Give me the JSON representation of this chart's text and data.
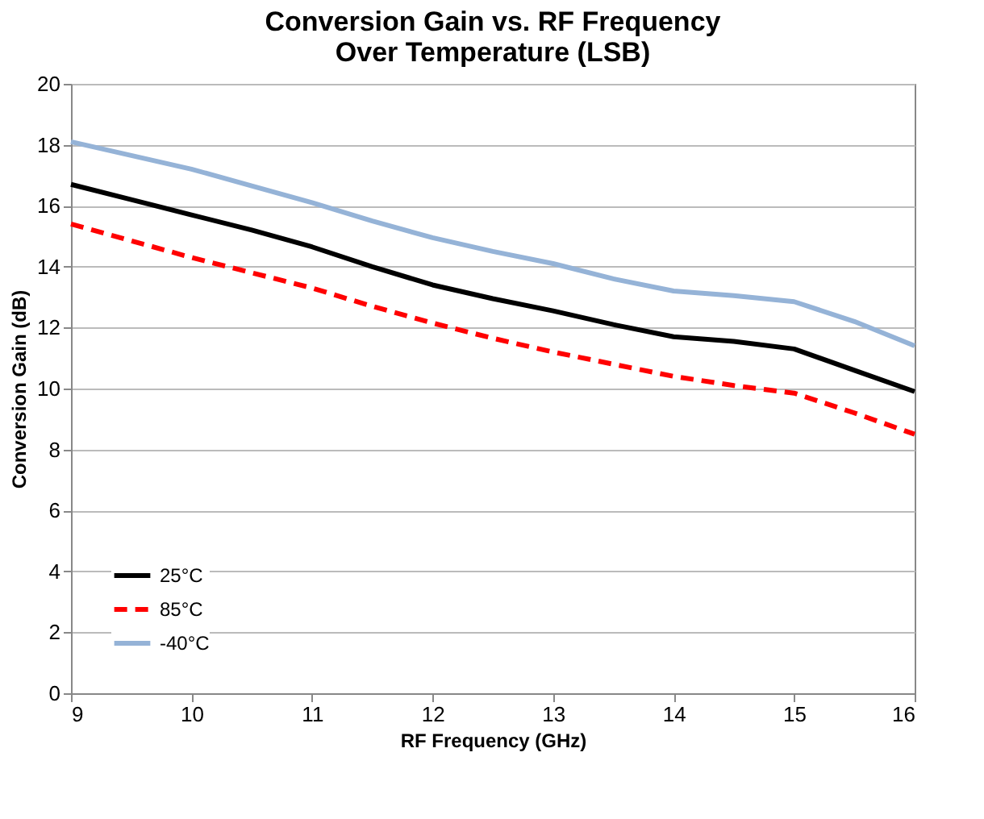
{
  "chart_data": {
    "type": "line",
    "title": "Conversion Gain vs. RF Frequency\nOver Temperature  (LSB)",
    "xlabel": "RF Frequency (GHz)",
    "ylabel": "Conversion Gain (dB)",
    "x": [
      9,
      9.5,
      10,
      10.5,
      11,
      11.5,
      12,
      12.5,
      13,
      13.5,
      14,
      14.5,
      15,
      15.5,
      16
    ],
    "series": [
      {
        "name": "25°C",
        "color": "#000000",
        "line_style": "solid",
        "values": [
          16.7,
          16.2,
          15.7,
          15.2,
          14.65,
          14.0,
          13.4,
          12.95,
          12.55,
          12.1,
          11.7,
          11.55,
          11.3,
          10.6,
          9.9
        ]
      },
      {
        "name": "85°C",
        "color": "#ff0000",
        "line_style": "dashed",
        "values": [
          15.4,
          14.85,
          14.3,
          13.8,
          13.3,
          12.7,
          12.15,
          11.65,
          11.2,
          10.8,
          10.4,
          10.1,
          9.85,
          9.2,
          8.5
        ]
      },
      {
        "name": "-40°C",
        "color": "#95b3d7",
        "line_style": "solid",
        "values": [
          18.1,
          17.65,
          17.2,
          16.65,
          16.1,
          15.5,
          14.95,
          14.5,
          14.1,
          13.6,
          13.2,
          13.05,
          12.85,
          12.2,
          11.4
        ]
      }
    ],
    "xlim": [
      9,
      16
    ],
    "xticks": [
      9,
      10,
      11,
      12,
      13,
      14,
      15,
      16
    ],
    "ylim": [
      0,
      20
    ],
    "yticks": [
      0,
      2,
      4,
      6,
      8,
      10,
      12,
      14,
      16,
      18,
      20
    ],
    "grid": "y",
    "legend": "bottom left",
    "marker": "none"
  }
}
